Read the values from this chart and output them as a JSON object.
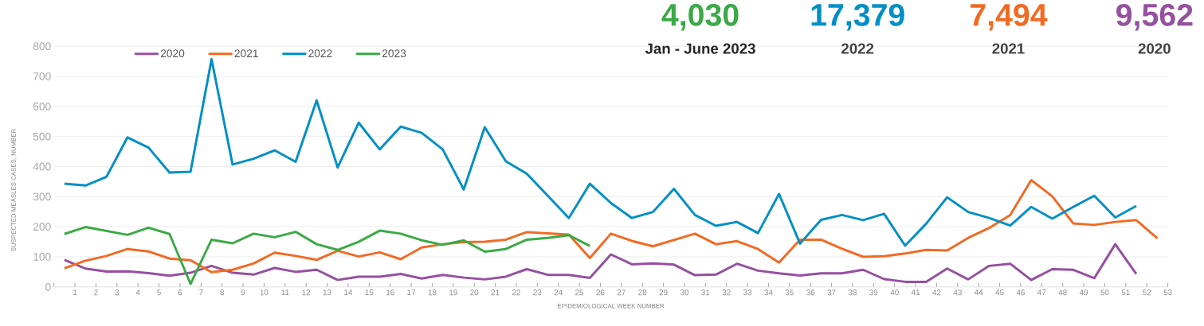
{
  "chart_data": {
    "type": "line",
    "xlabel": "EPIDEMIOLOGICAL WEEK NUMBER",
    "ylabel": "SUSPECTED MEASLES CASES, NUMBER",
    "annotations": [
      "4,030",
      "Jan - June 2023",
      "17,379",
      "2022",
      "7,494",
      "2021",
      "9,562",
      "2020"
    ],
    "x": [
      0.5,
      1.5,
      2.5,
      3.5,
      4.5,
      5.5,
      6.5,
      7.5,
      8.5,
      9.5,
      10.5,
      11.5,
      12.5,
      13.5,
      14.5,
      15.5,
      16.5,
      17.5,
      18.5,
      19.5,
      20.5,
      21.5,
      22.5,
      23.5,
      24.5,
      25.5,
      26.5,
      27.5,
      28.5,
      29.5,
      30.5,
      31.5,
      32.5,
      33.5,
      34.5,
      35.5,
      36.5,
      37.5,
      38.5,
      39.5,
      40.5,
      41.5,
      42.5,
      43.5,
      44.5,
      45.5,
      46.5,
      47.5,
      48.5,
      49.5,
      50.5,
      51.5,
      52.5
    ],
    "series": [
      {
        "name": "2020",
        "color": "#9550a0",
        "values": [
          90,
          61,
          51,
          52,
          46,
          37,
          47,
          70,
          47,
          41,
          63,
          50,
          57,
          23,
          34,
          34,
          43,
          28,
          40,
          31,
          25,
          34,
          59,
          40,
          40,
          30,
          108,
          75,
          78,
          74,
          39,
          41,
          77,
          54,
          45,
          38,
          45,
          45,
          57,
          26,
          17,
          17,
          61,
          25,
          70,
          77,
          23,
          59,
          57,
          29,
          142,
          43,
          null
        ]
      },
      {
        "name": "2021",
        "color": "#f26a22",
        "values": [
          62,
          87,
          103,
          126,
          118,
          94,
          89,
          49,
          57,
          78,
          114,
          103,
          90,
          120,
          101,
          115,
          92,
          131,
          142,
          149,
          150,
          157,
          182,
          178,
          174,
          96,
          177,
          153,
          135,
          156,
          177,
          142,
          152,
          126,
          81,
          157,
          157,
          127,
          100,
          102,
          111,
          123,
          121,
          163,
          196,
          239,
          355,
          301,
          211,
          206,
          216,
          222,
          162
        ]
      },
      {
        "name": "2022",
        "color": "#008fc5",
        "values": [
          343,
          337,
          366,
          497,
          463,
          380,
          383,
          757,
          407,
          426,
          454,
          416,
          620,
          397,
          546,
          457,
          533,
          512,
          457,
          324,
          531,
          418,
          376,
          303,
          229,
          343,
          279,
          229,
          249,
          326,
          239,
          203,
          216,
          179,
          309,
          144,
          223,
          239,
          222,
          243,
          137,
          210,
          298,
          249,
          229,
          204,
          266,
          227,
          266,
          303,
          231,
          269,
          null
        ]
      },
      {
        "name": "2023",
        "color": "#3aaa45",
        "values": [
          176,
          199,
          186,
          173,
          197,
          176,
          10,
          157,
          145,
          177,
          165,
          183,
          142,
          123,
          150,
          187,
          177,
          155,
          140,
          155,
          117,
          126,
          157,
          163,
          172,
          136,
          null,
          null,
          null,
          null,
          null,
          null,
          null,
          null,
          null,
          null,
          null,
          null,
          null,
          null,
          null,
          null,
          null,
          null,
          null,
          null,
          null,
          null,
          null,
          null,
          null,
          null,
          null
        ]
      }
    ],
    "xlim": [
      0,
      53
    ],
    "xticks": [
      {
        "value": 0,
        "label": null
      },
      1,
      2,
      3,
      4,
      5,
      6,
      7,
      8,
      9,
      10,
      11,
      12,
      13,
      14,
      15,
      16,
      17,
      18,
      19,
      20,
      21,
      22,
      23,
      24,
      25,
      26,
      27,
      28,
      29,
      30,
      31,
      32,
      33,
      34,
      35,
      36,
      37,
      38,
      39,
      40,
      41,
      42,
      43,
      44,
      45,
      46,
      47,
      48,
      49,
      50,
      51,
      52,
      53
    ],
    "ylim": [
      0,
      800
    ],
    "yticks": [
      0,
      100,
      200,
      300,
      400,
      500,
      600,
      700,
      800
    ],
    "grid": "y",
    "legend": "top left",
    "marker": "none",
    "line_style": "solid"
  }
}
